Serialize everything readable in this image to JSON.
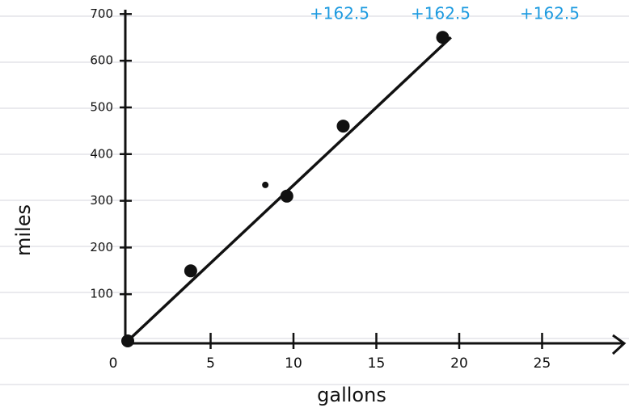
{
  "chart_data": {
    "type": "scatter",
    "x_label": "gallons",
    "y_label": "miles",
    "xlim": [
      0,
      30
    ],
    "ylim": [
      0,
      730
    ],
    "xticks": [
      0,
      5,
      10,
      15,
      20,
      25
    ],
    "yticks": [
      100,
      200,
      300,
      400,
      500,
      600,
      700
    ],
    "color": "#111111",
    "points": {
      "x": [
        0,
        3.8,
        8.3,
        9.6,
        13,
        19
      ],
      "values": [
        0,
        150,
        334,
        310,
        460,
        650
      ]
    },
    "fit_line": {
      "x": [
        0,
        19.5
      ],
      "values": [
        0,
        650
      ]
    },
    "annotations": [
      "+162.5",
      "+162.5",
      "+162.5"
    ]
  }
}
